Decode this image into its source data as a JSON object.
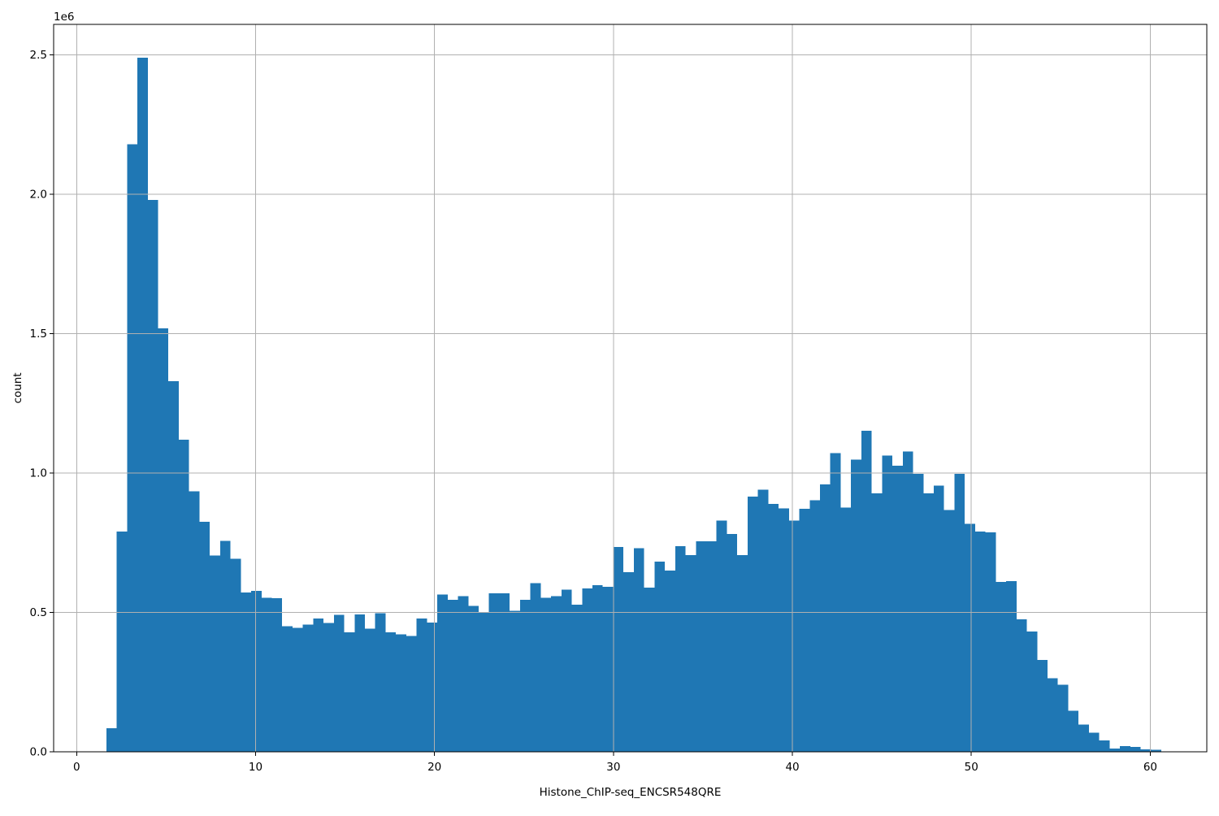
{
  "chart_data": {
    "type": "bar",
    "subtype": "histogram",
    "title": "",
    "xlabel": "Histone_ChIP-seq_ENCSR548QRE",
    "ylabel": "count",
    "y_offset_label": "1e6",
    "values_unit": "1e6",
    "bin_start": 1.66,
    "bin_width": 0.578,
    "values": [
      0.085,
      0.79,
      2.18,
      2.49,
      1.98,
      1.52,
      1.33,
      1.12,
      0.935,
      0.826,
      0.704,
      0.757,
      0.692,
      0.571,
      0.577,
      0.553,
      0.551,
      0.451,
      0.445,
      0.456,
      0.478,
      0.462,
      0.492,
      0.428,
      0.493,
      0.442,
      0.497,
      0.428,
      0.421,
      0.415,
      0.479,
      0.464,
      0.565,
      0.546,
      0.558,
      0.523,
      0.5,
      0.568,
      0.568,
      0.506,
      0.546,
      0.605,
      0.553,
      0.558,
      0.582,
      0.528,
      0.586,
      0.598,
      0.592,
      0.735,
      0.645,
      0.73,
      0.589,
      0.683,
      0.651,
      0.738,
      0.706,
      0.755,
      0.755,
      0.83,
      0.782,
      0.706,
      0.916,
      0.94,
      0.89,
      0.873,
      0.83,
      0.872,
      0.903,
      0.96,
      1.072,
      0.876,
      1.048,
      1.152,
      0.928,
      1.063,
      1.026,
      1.078,
      0.998,
      0.928,
      0.955,
      0.868,
      0.998,
      0.818,
      0.79,
      0.788,
      0.61,
      0.613,
      0.476,
      0.432,
      0.33,
      0.264,
      0.24,
      0.147,
      0.097,
      0.068,
      0.041,
      0.012,
      0.021,
      0.018,
      0.009,
      0.008
    ],
    "x_ticks": [
      0,
      10,
      20,
      30,
      40,
      50,
      60
    ],
    "x_tick_labels": [
      "0",
      "10",
      "20",
      "30",
      "40",
      "50",
      "60"
    ],
    "y_ticks": [
      0,
      0.5,
      1.0,
      1.5,
      2.0,
      2.5
    ],
    "y_tick_labels": [
      "0.0",
      "0.5",
      "1.0",
      "1.5",
      "2.0",
      "2.5"
    ],
    "xlim": [
      -1.285,
      63.16
    ],
    "ylim": [
      0,
      2.61
    ],
    "grid": true,
    "legend": false,
    "bar_color": "#1f77b4",
    "grid_color": "#b0b0b0",
    "spine_color": "#000000",
    "background": "#ffffff"
  }
}
